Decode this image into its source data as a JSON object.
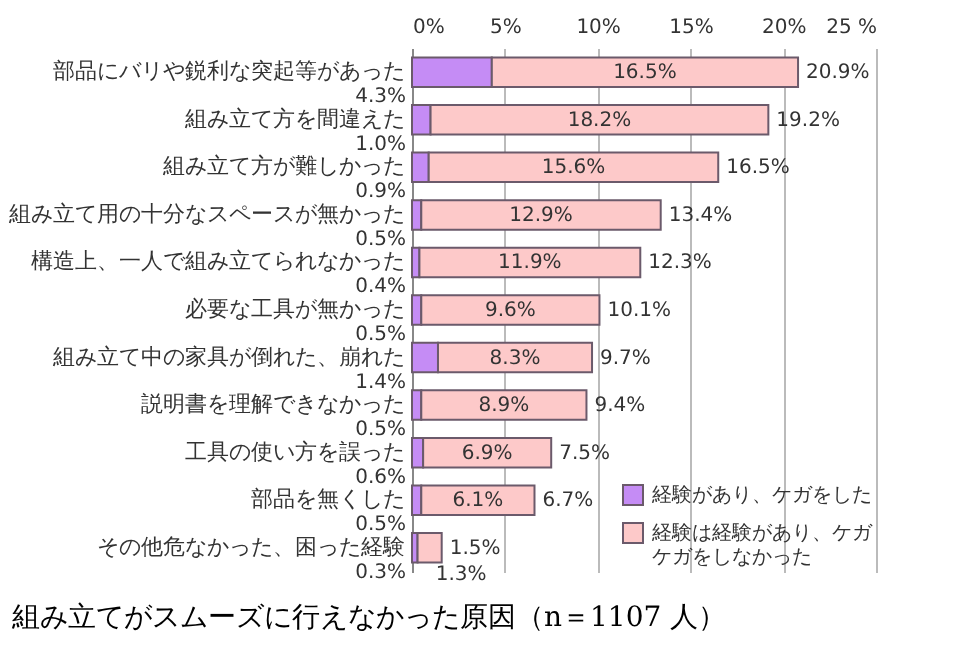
{
  "chart_data": {
    "type": "bar",
    "orientation": "horizontal",
    "stacked": true,
    "title": "組み立てがスムーズに行えなかった原因（n＝1107 人）",
    "categories": [
      "部品にバリや鋭利な突起等があった",
      "組み立て方を間違えた",
      "組み立て方が難しかった",
      "組み立て用の十分なスペースが無かった",
      "構造上、一人で組み立てられなかった",
      "必要な工具が無かった",
      "組み立て中の家具が倒れた、崩れた",
      "説明書を理解できなかった",
      "工具の使い方を誤った",
      "部品を無くした",
      "その他危なかった、困った経験"
    ],
    "series": [
      {
        "name": "経験があり、ケガをした",
        "color": "#c58cf5",
        "values": [
          4.3,
          1.0,
          0.9,
          0.5,
          0.4,
          0.5,
          1.4,
          0.5,
          0.6,
          0.5,
          0.3
        ],
        "value_labels": [
          "4.3%",
          "1.0%",
          "0.9%",
          "0.5%",
          "0.4%",
          "0.5%",
          "1.4%",
          "0.5%",
          "0.6%",
          "0.5%",
          "0.3%"
        ]
      },
      {
        "name": "経験は経験があり、ケガケガをしなかった",
        "color": "#fdc9c9",
        "values": [
          16.5,
          18.2,
          15.6,
          12.9,
          11.9,
          9.6,
          8.3,
          8.9,
          6.9,
          6.1,
          1.3
        ],
        "value_labels": [
          "16.5%",
          "18.2%",
          "15.6%",
          "12.9%",
          "11.9%",
          "9.6%",
          "8.3%",
          "8.9%",
          "6.9%",
          "6.1%",
          "1.3%"
        ]
      }
    ],
    "totals": [
      "20.9%",
      "19.2%",
      "16.5%",
      "13.4%",
      "12.3%",
      "10.1%",
      "9.7%",
      "9.4%",
      "7.5%",
      "6.7%",
      "1.5%"
    ],
    "xlim": [
      0,
      25
    ],
    "xticks": [
      {
        "value": 0,
        "label": "0%"
      },
      {
        "value": 5,
        "label": "5%"
      },
      {
        "value": 10,
        "label": "10%"
      },
      {
        "value": 15,
        "label": "15%"
      },
      {
        "value": 20,
        "label": "20%"
      },
      {
        "value": 25,
        "label": "25 %"
      }
    ],
    "grid": "x",
    "legend": "bottom right"
  }
}
